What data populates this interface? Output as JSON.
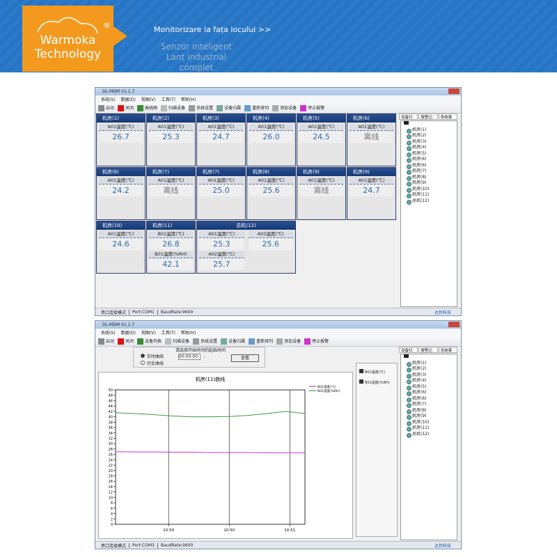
{
  "header": {
    "brand": "Warmoka",
    "brand_line2": "Technology",
    "registered": "®",
    "link": "Monitorizare la fața locului >>",
    "tagline": [
      "Senzor inteligent",
      "Lanț industrial",
      "complet"
    ]
  },
  "app": {
    "title": "DL-MDM V1.1.7",
    "menu": [
      "系统(S)",
      "数据(D)",
      "视图(V)",
      "工具(T)",
      "帮助(H)"
    ],
    "tabs": [
      "设备归属",
      "报警记录",
      "系统事件"
    ],
    "tree": [
      "机房(1)",
      "机房(2)",
      "机房(3)",
      "机房(4)",
      "机房(5)",
      "机房(6)",
      "机房(6)",
      "机房(7)",
      "机房(8)",
      "机房(9)",
      "机房(10)",
      "机房(11)",
      "总机(12)"
    ],
    "badge": "达邦科技"
  },
  "window1": {
    "toolbar": [
      "启动",
      "关闭",
      "曲线图",
      "扫描设备",
      "系统设置",
      "设备归属",
      "重新排列",
      "添加设备",
      "停止报警"
    ],
    "status": [
      "串口连接模式",
      "Port:COM1",
      "BaudRate:9600"
    ],
    "cards": [
      {
        "title": "机房(1)",
        "entries": [
          {
            "label": "A01温度(℃)",
            "value": "26.7"
          }
        ]
      },
      {
        "title": "机房(2)",
        "entries": [
          {
            "label": "A01温度(℃)",
            "value": "25.3"
          }
        ]
      },
      {
        "title": "机房(3)",
        "entries": [
          {
            "label": "A01温度(℃)",
            "value": "24.7"
          }
        ]
      },
      {
        "title": "机房(4)",
        "entries": [
          {
            "label": "A01温度(℃)",
            "value": "26.0"
          }
        ]
      },
      {
        "title": "机房(5)",
        "entries": [
          {
            "label": "A01温度(℃)",
            "value": "24.5"
          }
        ]
      },
      {
        "title": "机房(6)",
        "entries": [
          {
            "label": "A01温度(℃)",
            "value": "离线"
          }
        ]
      },
      {
        "title": "机房(6)",
        "entries": [
          {
            "label": "A01温度(℃)",
            "value": "24.2"
          }
        ]
      },
      {
        "title": "机房(7)",
        "entries": [
          {
            "label": "A01温度(℃)",
            "value": "离线"
          }
        ]
      },
      {
        "title": "机房(7)",
        "entries": [
          {
            "label": "A01温度(℃)",
            "value": "25.0"
          }
        ]
      },
      {
        "title": "机房(8)",
        "entries": [
          {
            "label": "A01温度(℃)",
            "value": "25.6"
          }
        ]
      },
      {
        "title": "机房(9)",
        "entries": [
          {
            "label": "A01温度(℃)",
            "value": "离线"
          }
        ]
      },
      {
        "title": "机房(9)",
        "entries": [
          {
            "label": "A01温度(℃)",
            "value": "24.7"
          }
        ]
      },
      {
        "title": "机房(10)",
        "entries": [
          {
            "label": "A01温度(℃)",
            "value": "24.6"
          }
        ]
      },
      {
        "title": "机房(11)",
        "entries": [
          {
            "label": "B01温度(℃)",
            "value": "26.8"
          },
          {
            "label": "B01温度(%RH)",
            "value": "42.1"
          }
        ]
      },
      {
        "title": "总机(12)",
        "entries": [
          {
            "label": "A01温度(℃)",
            "value": "25.3"
          },
          {
            "label": "A03温度(℃)",
            "value": "25.6"
          },
          {
            "label": "A02温度(℃)",
            "value": "25.7"
          }
        ]
      }
    ]
  },
  "window2": {
    "toolbar": [
      "启动",
      "关闭",
      "设备列表",
      "扫描设备",
      "系统设置",
      "设备归属",
      "重新排列",
      "添加设备",
      "停止报警"
    ],
    "status": [
      "串口连接模式",
      "Port:COM3",
      "BaudRate:9600"
    ],
    "mode_options": [
      "实时曲线",
      "历史曲线"
    ],
    "time_prompt": "请选择开始时间的起始时间",
    "time_value": "00:00:00",
    "separator": "-",
    "view_button": "查看",
    "checkboxes": [
      "B01温度(℃)",
      "B01湿度(%RH)"
    ],
    "chart": {
      "type": "line",
      "title": "机房(11)曲线",
      "xlim": [
        0,
        100
      ],
      "xticks": [
        {
          "value": 28,
          "label": "10:50"
        },
        {
          "value": 60,
          "label": "10:50"
        },
        {
          "value": 92,
          "label": "10:51"
        }
      ],
      "ylim": [
        0,
        50
      ],
      "yticks": [
        0,
        2,
        4,
        6,
        8,
        10,
        12,
        14,
        16,
        18,
        20,
        22,
        24,
        26,
        28,
        30,
        32,
        34,
        36,
        38,
        40,
        42,
        44,
        46,
        48,
        50
      ],
      "x": [
        0,
        10,
        20,
        30,
        40,
        50,
        60,
        70,
        80,
        90,
        100
      ],
      "series": [
        {
          "name": "B01温度(℃)",
          "color": "#c03cc0",
          "values": [
            27,
            26.9,
            26.9,
            26.8,
            26.8,
            26.7,
            26.7,
            26.7,
            26.6,
            26.6,
            26.6
          ]
        },
        {
          "name": "B01湿度(%RH)",
          "color": "#3c9a3c",
          "values": [
            41.5,
            41.2,
            40.8,
            40.3,
            40,
            40,
            40.1,
            40.5,
            41.2,
            42,
            41.2
          ]
        }
      ]
    }
  }
}
